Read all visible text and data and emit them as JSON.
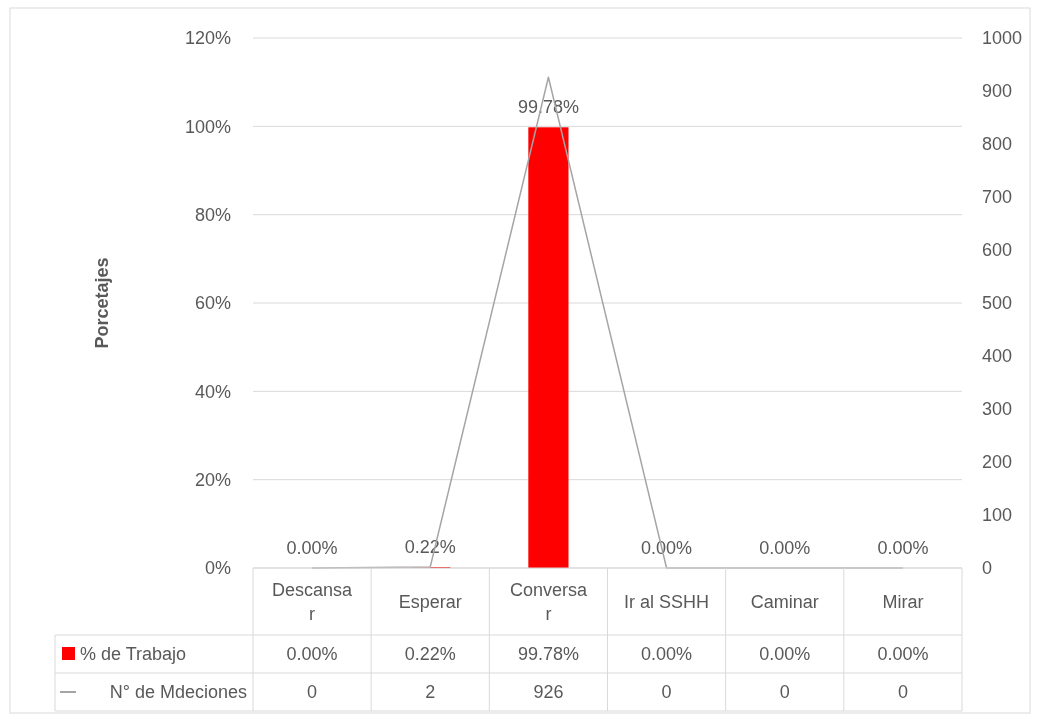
{
  "chart_data": {
    "type": "bar",
    "ylabel": "Porcetajes",
    "categories": [
      "Descansar",
      "Esperar",
      "Conversar",
      "Ir al SSHH",
      "Caminar",
      "Mirar"
    ],
    "series": [
      {
        "name": "% de Trabajo",
        "color": "#ff0000",
        "values": [
          0,
          0.22,
          99.78,
          0,
          0,
          0
        ],
        "value_labels": [
          "0.00%",
          "0.22%",
          "99.78%",
          "0.00%",
          "0.00%",
          "0.00%"
        ]
      },
      {
        "name": "N° de Mdeciones",
        "type": "line",
        "axis": "y2",
        "color": "#a5a5a5",
        "values": [
          0,
          2,
          926,
          0,
          0,
          0
        ],
        "value_labels": [
          "0",
          "2",
          "926",
          "0",
          "0",
          "0"
        ]
      }
    ],
    "ylim": [
      0,
      120
    ],
    "yticks": [
      {
        "value": 0,
        "label": "0%"
      },
      {
        "value": 20,
        "label": "20%"
      },
      {
        "value": 40,
        "label": "40%"
      },
      {
        "value": 60,
        "label": "60%"
      },
      {
        "value": 80,
        "label": "80%"
      },
      {
        "value": 100,
        "label": "100%"
      },
      {
        "value": 120,
        "label": "120%"
      }
    ],
    "y2lim": [
      0,
      1000
    ],
    "y2ticks": [
      0,
      100,
      200,
      300,
      400,
      500,
      600,
      700,
      800,
      900,
      1000
    ],
    "grid": "y",
    "legend": "bottom"
  }
}
